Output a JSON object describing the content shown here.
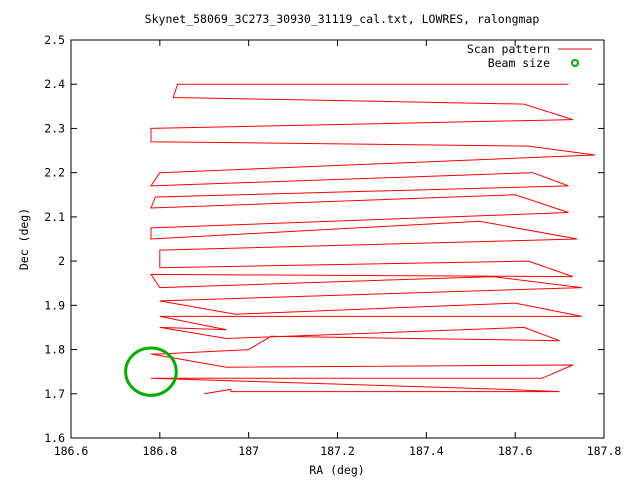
{
  "chart_data": {
    "type": "line",
    "title": "Skynet_58069_3C273_30930_31119_cal.txt, LOWRES, ralongmap",
    "xlabel": "RA (deg)",
    "ylabel": "Dec (deg)",
    "xlim": [
      186.6,
      187.8
    ],
    "ylim": [
      1.6,
      2.5
    ],
    "xticks": [
      186.6,
      186.8,
      187,
      187.2,
      187.4,
      187.6,
      187.8
    ],
    "xtick_labels": [
      "186.6",
      "186.8",
      "187",
      "187.2",
      "187.4",
      "187.6",
      "187.8"
    ],
    "yticks": [
      1.6,
      1.7,
      1.8,
      1.9,
      2.0,
      2.1,
      2.2,
      2.3,
      2.4,
      2.5
    ],
    "ytick_labels": [
      "1.6",
      "1.7",
      "1.8",
      "1.9",
      "2",
      "2.1",
      "2.2",
      "2.3",
      "2.4",
      "2.5"
    ],
    "grid": false,
    "legend_position": "top-right",
    "colors": {
      "scan": "#ff0000",
      "beam": "#00b000",
      "axes": "#000000"
    },
    "series": [
      {
        "name": "Scan pattern",
        "style": "line",
        "x": [
          186.9,
          186.96,
          186.96,
          187.7,
          187.58,
          186.78,
          186.78,
          187.66,
          187.73,
          186.95,
          186.78,
          186.8,
          187.0,
          187.05,
          187.7,
          187.62,
          186.95,
          186.8,
          186.95,
          186.8,
          187.75,
          187.6,
          186.97,
          186.8,
          187.75,
          187.55,
          186.8,
          186.78,
          187.73,
          187.63,
          186.8,
          186.8,
          187.74,
          187.52,
          186.78,
          186.78,
          187.72,
          187.6,
          186.78,
          186.79,
          187.72,
          187.64,
          186.78,
          186.8,
          187.78,
          187.63,
          186.78,
          186.78,
          187.73,
          187.62,
          186.83,
          186.84,
          187.72
        ],
        "y": [
          1.7,
          1.71,
          1.705,
          1.705,
          1.71,
          1.735,
          1.735,
          1.735,
          1.765,
          1.76,
          1.79,
          1.79,
          1.8,
          1.83,
          1.82,
          1.85,
          1.825,
          1.85,
          1.845,
          1.875,
          1.875,
          1.905,
          1.88,
          1.91,
          1.94,
          1.965,
          1.94,
          1.97,
          1.965,
          2.0,
          1.985,
          2.025,
          2.05,
          2.09,
          2.05,
          2.075,
          2.11,
          2.15,
          2.12,
          2.145,
          2.17,
          2.2,
          2.17,
          2.2,
          2.24,
          2.26,
          2.27,
          2.3,
          2.32,
          2.355,
          2.37,
          2.4,
          2.4
        ]
      },
      {
        "name": "Beam size",
        "style": "circle",
        "center": [
          186.78,
          1.75
        ],
        "radius_x": 0.057,
        "radius_y": 0.0535
      }
    ]
  }
}
